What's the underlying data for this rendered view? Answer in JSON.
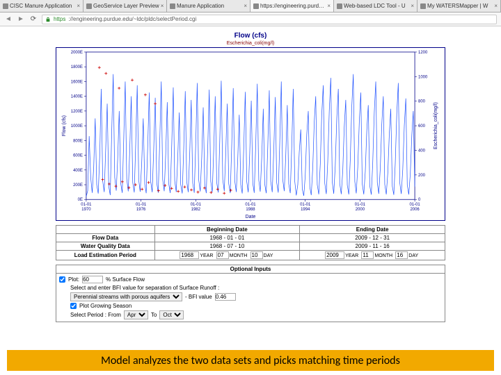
{
  "browser": {
    "tabs": [
      {
        "label": "CISC Manure Application",
        "active": false
      },
      {
        "label": "GeoService Layer Preview",
        "active": false
      },
      {
        "label": "Manure Application",
        "active": false
      },
      {
        "label": "https://engineering.purd…",
        "active": true
      },
      {
        "label": "Web-based LDC Tool - U",
        "active": false
      },
      {
        "label": "My WATERSMapper | W",
        "active": false
      }
    ],
    "url_https": "https",
    "url_rest": "://engineering.purdue.edu/~ldc/pldc/selectPeriod.cgi"
  },
  "chart": {
    "title": "Flow (cfs)",
    "legend": "Escherichia_coli(mg/l)",
    "left_axis_label": "Flow (cfs)",
    "right_axis_label": "Escherichia_coli(mg/l)",
    "x_axis_label": "Date",
    "x_ticks": [
      "01-01\n1970",
      "01-01\n1976",
      "01-01\n1982",
      "01-01\n1988",
      "01-01\n1994",
      "01-01\n2000",
      "01-01\n2006"
    ],
    "left_ticks": [
      "2000E",
      "1800E",
      "1600E",
      "1400E",
      "1200E",
      "1000E",
      "800E",
      "600E",
      "400E",
      "200E",
      "0E"
    ],
    "right_ticks": [
      "1200",
      "1000",
      "800",
      "600",
      "400",
      "200",
      "0"
    ],
    "left_ylim": [
      0,
      2000
    ],
    "right_ylim": [
      0,
      1200
    ],
    "line_color": "#1e50ff",
    "marker_color": "#cc0000",
    "axis_color": "#000088",
    "flow_series": [
      40,
      120,
      860,
      300,
      90,
      450,
      1100,
      200,
      80,
      600,
      1500,
      250,
      100,
      700,
      1300,
      180,
      60,
      900,
      1700,
      300,
      120,
      550,
      1200,
      220,
      90,
      800,
      1600,
      280,
      110,
      650,
      1400,
      230,
      95,
      750,
      1550,
      260,
      105,
      500,
      1100,
      210,
      85,
      720,
      1450,
      240,
      98,
      680,
      1380,
      225,
      92,
      780,
      1600,
      270,
      112,
      620,
      1320,
      218,
      88,
      740,
      1520,
      255,
      102,
      560,
      1180,
      205,
      82,
      700,
      1470,
      245,
      99,
      640,
      1350,
      222,
      91,
      760,
      1580,
      265,
      108,
      580,
      1250,
      212,
      86,
      710,
      1490,
      248,
      100,
      660,
      1400,
      228,
      94,
      770,
      1610,
      272,
      114,
      610,
      1300,
      215,
      87,
      730,
      1510,
      252,
      101,
      540,
      1150,
      202,
      81,
      690,
      1460,
      242,
      97,
      630,
      1340,
      220,
      90,
      750,
      1570,
      263,
      107,
      570,
      1230,
      210,
      85,
      705,
      1480,
      247,
      99,
      650,
      1390,
      227,
      93,
      765,
      1600,
      270,
      113,
      600,
      1280,
      213,
      86,
      725,
      1500,
      250,
      55,
      200,
      640,
      950,
      140,
      50,
      320,
      880,
      1200,
      170,
      60,
      430,
      1060,
      1400,
      200,
      70,
      480,
      1150,
      1550,
      220,
      75,
      510,
      1200,
      1650,
      235,
      78,
      460,
      1100,
      1500,
      215,
      72,
      400,
      980,
      1350,
      195,
      68,
      530,
      1250,
      1700,
      245,
      82,
      440,
      1050,
      1450,
      210,
      70,
      380,
      920,
      1280,
      185,
      65,
      500,
      1180,
      1600,
      230,
      77,
      420,
      1020,
      1400,
      205,
      69,
      360,
      890,
      1230,
      180,
      63,
      490,
      1160,
      1580,
      225,
      76,
      410,
      1000,
      1370,
      200,
      67,
      350,
      870,
      1200,
      175
    ],
    "markers": [
      {
        "x": 0.04,
        "y_left": 1790
      },
      {
        "x": 0.06,
        "y_left": 1710
      },
      {
        "x": 0.1,
        "y_left": 1510
      },
      {
        "x": 0.14,
        "y_left": 1620
      },
      {
        "x": 0.18,
        "y_left": 1420
      },
      {
        "x": 0.21,
        "y_left": 1300
      },
      {
        "x": 0.05,
        "y_left": 270
      },
      {
        "x": 0.07,
        "y_left": 210
      },
      {
        "x": 0.09,
        "y_left": 180
      },
      {
        "x": 0.11,
        "y_left": 240
      },
      {
        "x": 0.13,
        "y_left": 160
      },
      {
        "x": 0.15,
        "y_left": 200
      },
      {
        "x": 0.17,
        "y_left": 140
      },
      {
        "x": 0.19,
        "y_left": 230
      },
      {
        "x": 0.22,
        "y_left": 120
      },
      {
        "x": 0.24,
        "y_left": 190
      },
      {
        "x": 0.26,
        "y_left": 150
      },
      {
        "x": 0.28,
        "y_left": 110
      },
      {
        "x": 0.3,
        "y_left": 170
      },
      {
        "x": 0.32,
        "y_left": 130
      },
      {
        "x": 0.34,
        "y_left": 100
      },
      {
        "x": 0.36,
        "y_left": 155
      },
      {
        "x": 0.38,
        "y_left": 95
      },
      {
        "x": 0.4,
        "y_left": 140
      },
      {
        "x": 0.42,
        "y_left": 85
      },
      {
        "x": 0.44,
        "y_left": 125
      }
    ]
  },
  "date_table": {
    "headers": [
      "",
      "Beginning Date",
      "Ending Date"
    ],
    "rows": [
      {
        "label": "Flow Data",
        "begin": "1968 - 01 - 01",
        "end": "2009 - 12 - 31"
      },
      {
        "label": "Water Quality Data",
        "begin": "1968 - 07 - 10",
        "end": "2009 - 11 - 16"
      }
    ],
    "load_row": {
      "label": "Load Estimation Period",
      "begin_year": "1968",
      "begin_month": "07",
      "begin_day": "10",
      "end_year": "2009",
      "end_month": "11",
      "end_day": "16",
      "year_lbl": "YEAR",
      "month_lbl": "MONTH",
      "day_lbl": "DAY"
    }
  },
  "optional": {
    "header": "Optional Inputs",
    "plot_checkbox_checked": true,
    "plot_label_a": "Plot:",
    "plot_pct": "60",
    "plot_label_b": "% Surface Flow",
    "bfi_text": "Select and enter BFI value for separation of Surface Runoff :",
    "bfi_select": "Perennial streams with porous aquifers",
    "bfi_lbl": "- BFI value",
    "bfi_value": "0.46",
    "grow_checked": true,
    "grow_label": "Plot Growing Season",
    "period_label": "Select Period : From",
    "period_from": "Apr",
    "period_to_lbl": "To",
    "period_to": "Oct"
  },
  "caption": "Model analyzes the two data sets and picks matching time periods",
  "colors": {
    "caption_bg": "#f2a900"
  }
}
